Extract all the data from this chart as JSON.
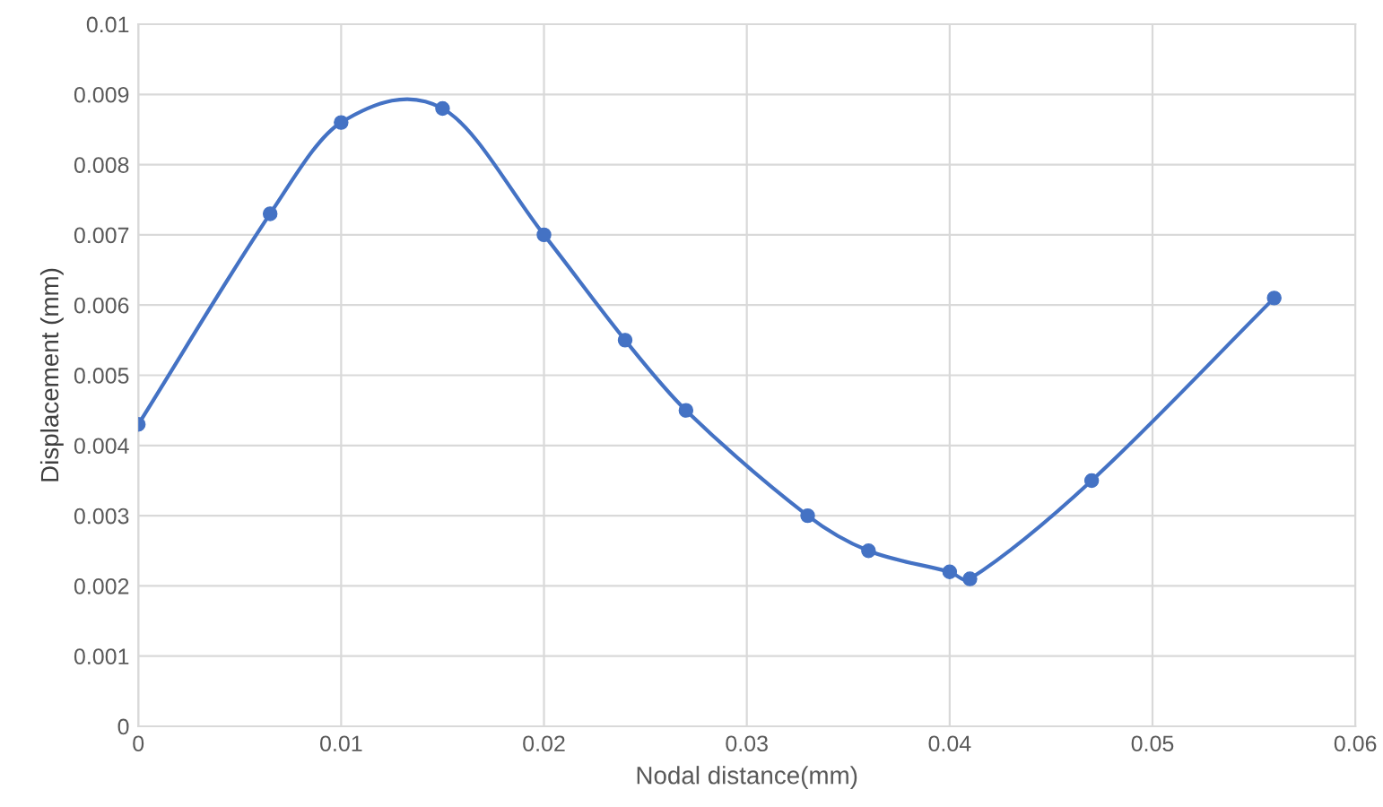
{
  "chart_data": {
    "type": "line",
    "xlabel": "Nodal distance(mm)",
    "ylabel": "Displacement (mm)",
    "x": [
      0,
      0.0065,
      0.01,
      0.015,
      0.02,
      0.024,
      0.027,
      0.033,
      0.036,
      0.04,
      0.041,
      0.047,
      0.056
    ],
    "series": [
      {
        "color": "#4472c4",
        "values": [
          0.0043,
          0.0073,
          0.0086,
          0.0088,
          0.007,
          0.0055,
          0.0045,
          0.003,
          0.0025,
          0.0022,
          0.0021,
          0.0035,
          0.0061
        ]
      }
    ],
    "xlim": [
      0,
      0.06
    ],
    "xticks": [
      0,
      0.01,
      0.02,
      0.03,
      0.04,
      0.05,
      0.06
    ],
    "ylim": [
      0,
      0.01
    ],
    "yticks": [
      0,
      0.001,
      0.002,
      0.003,
      0.004,
      0.005,
      0.006,
      0.007,
      0.008,
      0.009,
      0.01
    ],
    "grid": true,
    "marker": "circle",
    "line_style": "solid",
    "legend": false
  }
}
